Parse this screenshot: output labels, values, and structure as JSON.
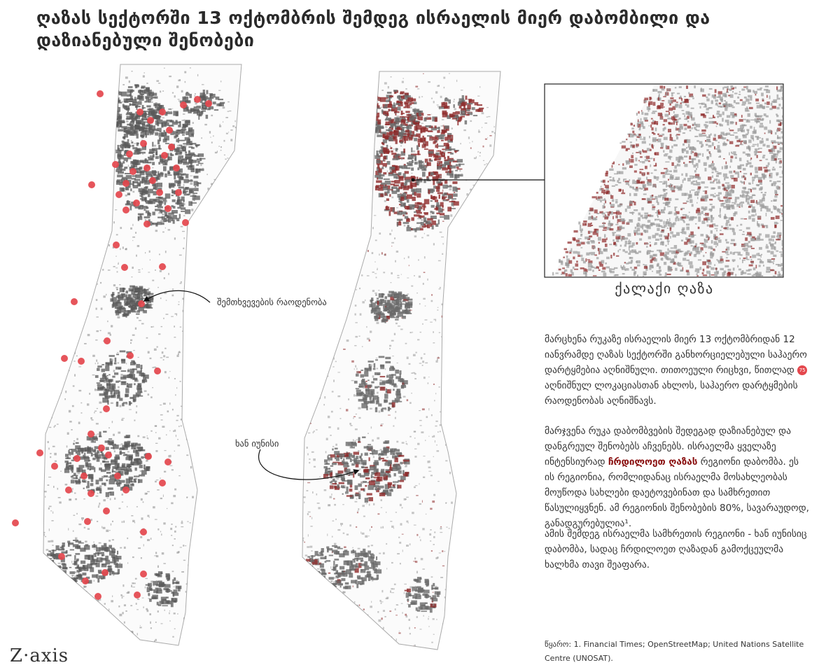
{
  "title": "ღაზას სექტორში 13 ოქტომბრის შემდეგ ისრაელის მიერ დაბომბილი და დაზიანებული შენობები",
  "labels": {
    "incident_count": "შემთხვევების რაოდენობა",
    "khan_younis": "ხან იუნისი",
    "inset_caption": "ქალაქი ღაზა"
  },
  "description": {
    "p1_before_badge": "მარცხენა რუკაზე ისრაელის მიერ 13 ოქტომბრიდან 12 იანვრამდე ღაზას სექტორში განხორციელებული საჰაერო დარტყმებია აღნიშნული. თითოეული რიცხვი, წითლად",
    "badge_number": "75",
    "p1_after_badge": "აღნიშნულ ლოკაციასთან ახლოს, საჰაერო დარტყმების რაოდენობას აღნიშნავს.",
    "p2_before": "მარჯვენა რუკა დაბომბვების შედეგად დაზიანებულ და დანგრეულ შენობებს აჩვენებს. ისრაელმა ყველაზე ინტენსიურად",
    "p2_highlight": "ჩრდილოეთ ღაზას",
    "p2_after": "რეგიონი დაბომბა. ეს ის რეგიონია, რომლიდანაც ისრაელმა მოსახლეობას მოუწოდა სახლები დაეტოვებინათ და სამხრეთით წასულიყვნენ. ამ რეგიონის შენობების 80%, სავარაუდოდ, განადგურებულია¹.",
    "p3": "ამის შემდეგ ისრაელმა სამხრეთის რეგიონი - ხან იუნისიც დაბომბა, სადაც ჩრდილოეთ ღაზადან გამოქცეულმა ხალხმა თავი შეაფარა."
  },
  "source": "წყარო: 1. Financial Times; OpenStreetMap; United Nations Satellite Centre (UNOSAT).",
  "logo": "Z·axis",
  "colors": {
    "building": "#5a5a5a",
    "damaged": "#8e2b2b",
    "strike_marker": "#e4474d",
    "outline": "#aaaaaa"
  },
  "legend": {
    "strike_marker": "შემთხვევების რაოდენობა",
    "damaged_buildings": "ქალაქი ღაზა"
  }
}
